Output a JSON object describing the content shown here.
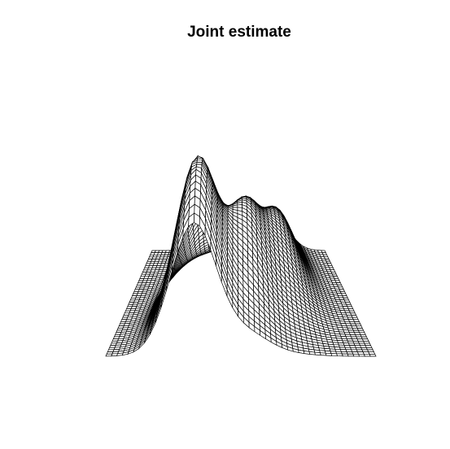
{
  "chart_data": {
    "type": "surface",
    "title": "Joint estimate",
    "xlabel": "",
    "ylabel": "",
    "zlabel": "",
    "grid_resolution": [
      50,
      50
    ],
    "surface": {
      "kind": "bivariate-density",
      "peaks": [
        {
          "height": 1.0,
          "front_back": 0.6,
          "left_right": -0.35
        },
        {
          "height": 0.55,
          "front_back": 0.05,
          "left_right": 0.05
        },
        {
          "height": 0.35,
          "front_back": -0.45,
          "left_right": 0.4
        }
      ]
    },
    "colors": {
      "mesh": "#000000",
      "background": "#ffffff"
    }
  }
}
